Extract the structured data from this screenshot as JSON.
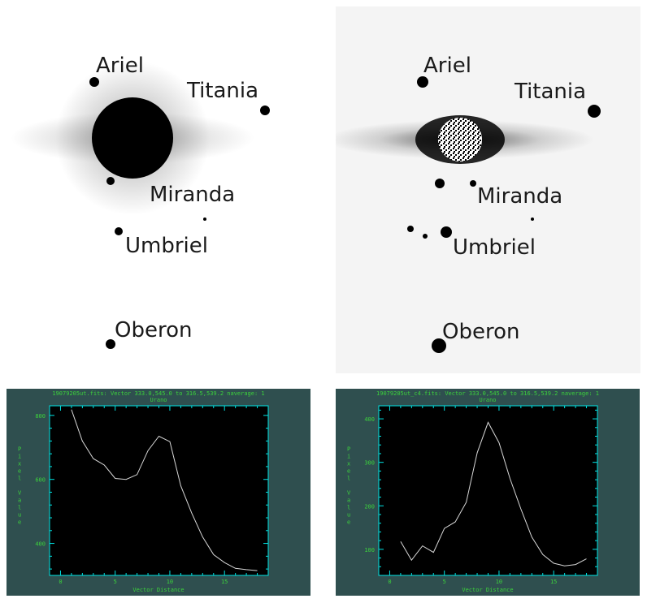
{
  "images": {
    "left": {
      "moons": [
        {
          "name": "Ariel"
        },
        {
          "name": "Titania"
        },
        {
          "name": "Miranda"
        },
        {
          "name": "Umbriel"
        },
        {
          "name": "Oberon"
        }
      ]
    },
    "right": {
      "moons": [
        {
          "name": "Ariel"
        },
        {
          "name": "Titania"
        },
        {
          "name": "Miranda"
        },
        {
          "name": "Umbriel"
        },
        {
          "name": "Oberon"
        }
      ]
    }
  },
  "colors": {
    "plot_background": "#2f4f4f",
    "plot_area": "#000000",
    "axis": "#00e5e5",
    "text": "#3cd23c",
    "line": "#d8d8d8"
  },
  "chart_data": [
    {
      "type": "line",
      "header": "19079205ut.fits: Vector 333.0,545.0 to 316.5,539.2 naverage: 1",
      "title": "Urano",
      "xlabel": "Vector Distance",
      "ylabel": "Pixel Value",
      "xlim": [
        -1,
        19
      ],
      "ylim": [
        300,
        830
      ],
      "xticks": [
        0,
        5,
        10,
        15
      ],
      "yticks": [
        400,
        600,
        800
      ],
      "x": [
        1,
        2,
        3,
        4,
        5,
        6,
        7,
        8,
        9,
        10,
        11,
        12,
        13,
        14,
        15,
        16,
        17,
        18
      ],
      "y": [
        818,
        720,
        665,
        645,
        603,
        600,
        615,
        690,
        735,
        718,
        580,
        495,
        420,
        365,
        340,
        322,
        318,
        315
      ]
    },
    {
      "type": "line",
      "header": "19079205ut_c4.fits: Vector 333.0,545.0 to 316.5,539.2 naverage: 1",
      "title": "Urano",
      "xlabel": "Vector Distance",
      "ylabel": "Pixel Value",
      "xlim": [
        -1,
        19
      ],
      "ylim": [
        40,
        430
      ],
      "xticks": [
        0,
        5,
        10,
        15
      ],
      "yticks": [
        100,
        200,
        300,
        400
      ],
      "x": [
        1,
        2,
        3,
        4,
        5,
        6,
        7,
        8,
        9,
        10,
        11,
        12,
        13,
        14,
        15,
        16,
        17,
        18
      ],
      "y": [
        118,
        75,
        108,
        93,
        148,
        163,
        208,
        322,
        392,
        345,
        263,
        193,
        128,
        88,
        68,
        62,
        65,
        78
      ]
    }
  ]
}
